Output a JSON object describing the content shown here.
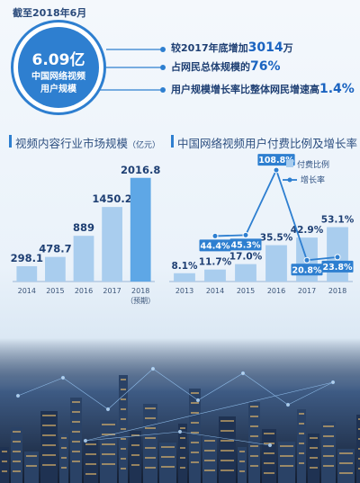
{
  "summary": {
    "date_label": "截至2018年6月",
    "circle_value": "6.09亿",
    "circle_label_line1": "中国网络视频",
    "circle_label_line2": "用户规模",
    "stats": [
      {
        "prefix": "较2017年底增加",
        "highlight": "3014",
        "suffix": "万"
      },
      {
        "prefix": "占网民总体规模的",
        "highlight": "76%",
        "suffix": ""
      },
      {
        "prefix": "用户规模增长率比整体网民增速高",
        "highlight": "1.4%",
        "suffix": ""
      }
    ],
    "colors": {
      "accent": "#2e7fd0",
      "text": "#1e3f73"
    }
  },
  "chart_data": [
    {
      "type": "bar",
      "title": "视频内容行业市场规模",
      "title_unit": "（亿元）",
      "categories": [
        "2014",
        "2015",
        "2016",
        "2017",
        "2018"
      ],
      "category_notes": [
        "",
        "",
        "",
        "",
        "（预期）"
      ],
      "values": [
        298.1,
        478.7,
        889,
        1450.2,
        2016.8
      ],
      "value_labels": [
        "298.1",
        "478.7",
        "889",
        "1450.2",
        "2016.8"
      ],
      "ylim": [
        0,
        2100
      ],
      "grid": false,
      "colors": {
        "bar": "#a9cdee",
        "bar_last": "#5ea7e6",
        "label": "#1e3f73"
      }
    },
    {
      "type": "bar",
      "title": "中国网络视频用户付费比例及增长率",
      "categories": [
        "2013",
        "2014",
        "2015",
        "2016",
        "2017",
        "2018"
      ],
      "legend_position": "top-right",
      "grid": false,
      "series": [
        {
          "name": "付费比例",
          "type": "bar",
          "values": [
            8.1,
            11.7,
            17.0,
            35.5,
            42.9,
            53.1
          ],
          "value_labels": [
            "8.1%",
            "11.7%",
            "17.0%",
            "35.5%",
            "42.9%",
            "53.1%"
          ],
          "color": "#a9cdee"
        },
        {
          "name": "增长率",
          "type": "line",
          "x": [
            "2014",
            "2015",
            "2016",
            "2017",
            "2018"
          ],
          "values": [
            44.4,
            45.3,
            108.8,
            20.8,
            23.8
          ],
          "value_labels": [
            "44.4%",
            "45.3%",
            "108.8%",
            "20.8%",
            "23.8%"
          ],
          "color": "#2e7fd0"
        }
      ],
      "ylim": [
        0,
        115
      ]
    }
  ]
}
